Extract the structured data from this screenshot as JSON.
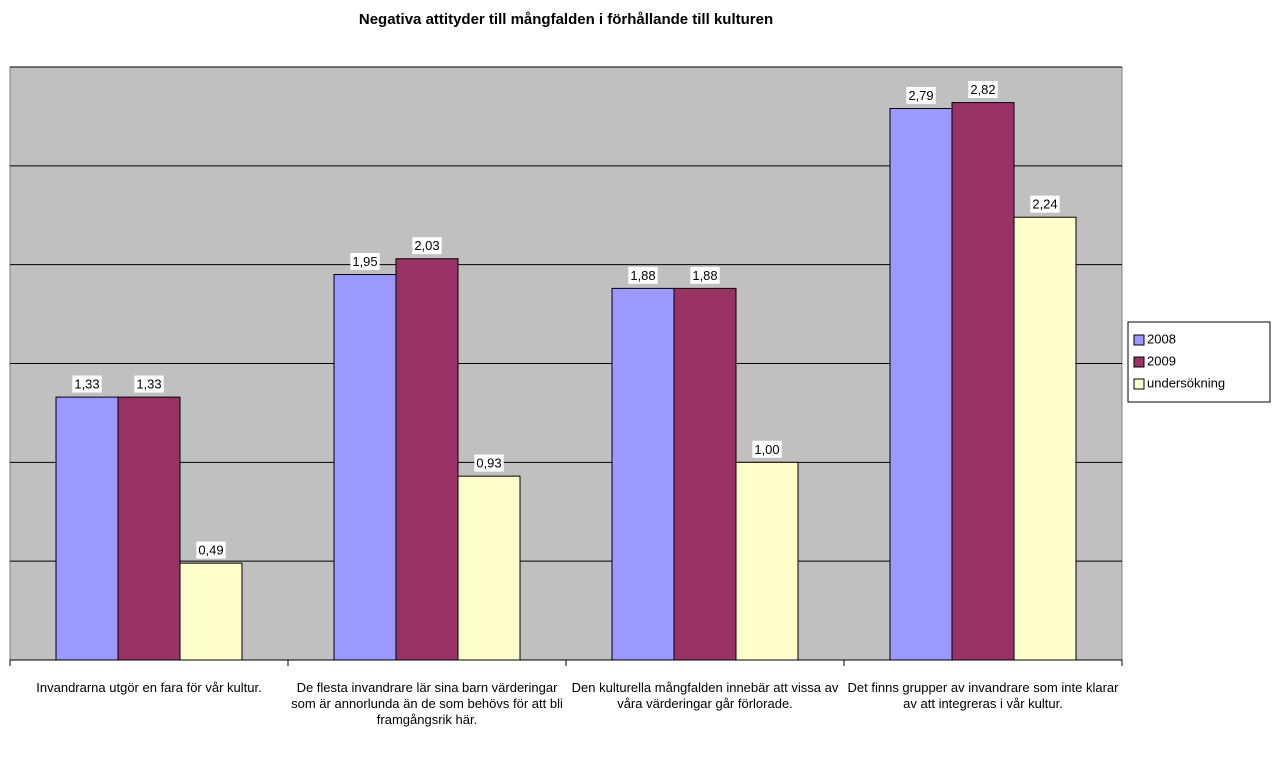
{
  "chart_data": {
    "type": "bar",
    "title": "Negativa attityder till mångfalden i förhållande till kulturen",
    "categories": [
      "Invandrarna utgör en fara för vår kultur.",
      "De flesta invandrare lär sina barn värderingar som är annorlunda än de som behövs för att bli framgångsrik här.",
      "Den kulturella mångfalden innebär att vissa av våra värderingar går förlorade.",
      "Det finns grupper av invandrare som inte klarar av att integreras i vår kultur."
    ],
    "series": [
      {
        "name": "2008",
        "color": "#9999ff",
        "values": [
          1.33,
          1.95,
          1.88,
          2.79
        ],
        "value_labels": [
          "1,33",
          "1,95",
          "1,88",
          "2,79"
        ]
      },
      {
        "name": "2009",
        "color": "#993366",
        "values": [
          1.33,
          2.03,
          1.88,
          2.82
        ],
        "value_labels": [
          "1,33",
          "2,03",
          "1,88",
          "2,82"
        ]
      },
      {
        "name": "undersökning",
        "color": "#ffffcc",
        "values": [
          0.49,
          0.93,
          1.0,
          2.24
        ],
        "value_labels": [
          "0,49",
          "0,93",
          "1,00",
          "2,24"
        ]
      }
    ],
    "ylim": [
      0,
      3
    ],
    "yticks": [
      0,
      0.5,
      1,
      1.5,
      2,
      2.5,
      3
    ],
    "grid": true,
    "legend": "right"
  }
}
